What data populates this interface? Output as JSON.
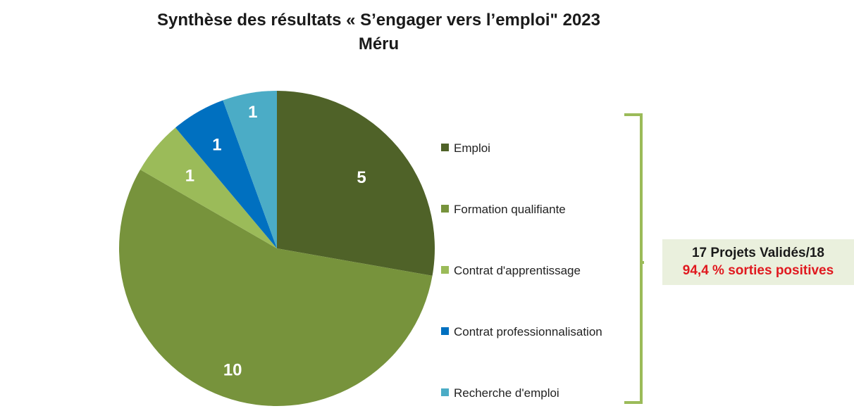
{
  "title_line1": "Synthèse des résultats « S’engager vers l’emploi\" 2023",
  "title_line2": "Méru",
  "chart_data": {
    "type": "pie",
    "title": "Synthèse des résultats « S’engager vers l’emploi\" 2023 Méru",
    "categories": [
      "Emploi",
      "Formation qualifiante",
      "Contrat d'apprentissage",
      "Contrat  professionnalisation",
      "Recherche d'emploi"
    ],
    "values": [
      5,
      10,
      1,
      1,
      1
    ],
    "colors": [
      "#4f6228",
      "#77933c",
      "#9bbb59",
      "#0070c0",
      "#4bacc6"
    ],
    "label_colors": [
      "#ffffff",
      "#ffffff",
      "#ffffff",
      "#ffffff",
      "#ffffff"
    ],
    "legend_position": "right"
  },
  "summary": {
    "line1": "17 Projets Validés/18",
    "line2": "94,4 %  sorties positives",
    "line2_color": "#e0191f",
    "bracket_color": "#9bbb59"
  }
}
